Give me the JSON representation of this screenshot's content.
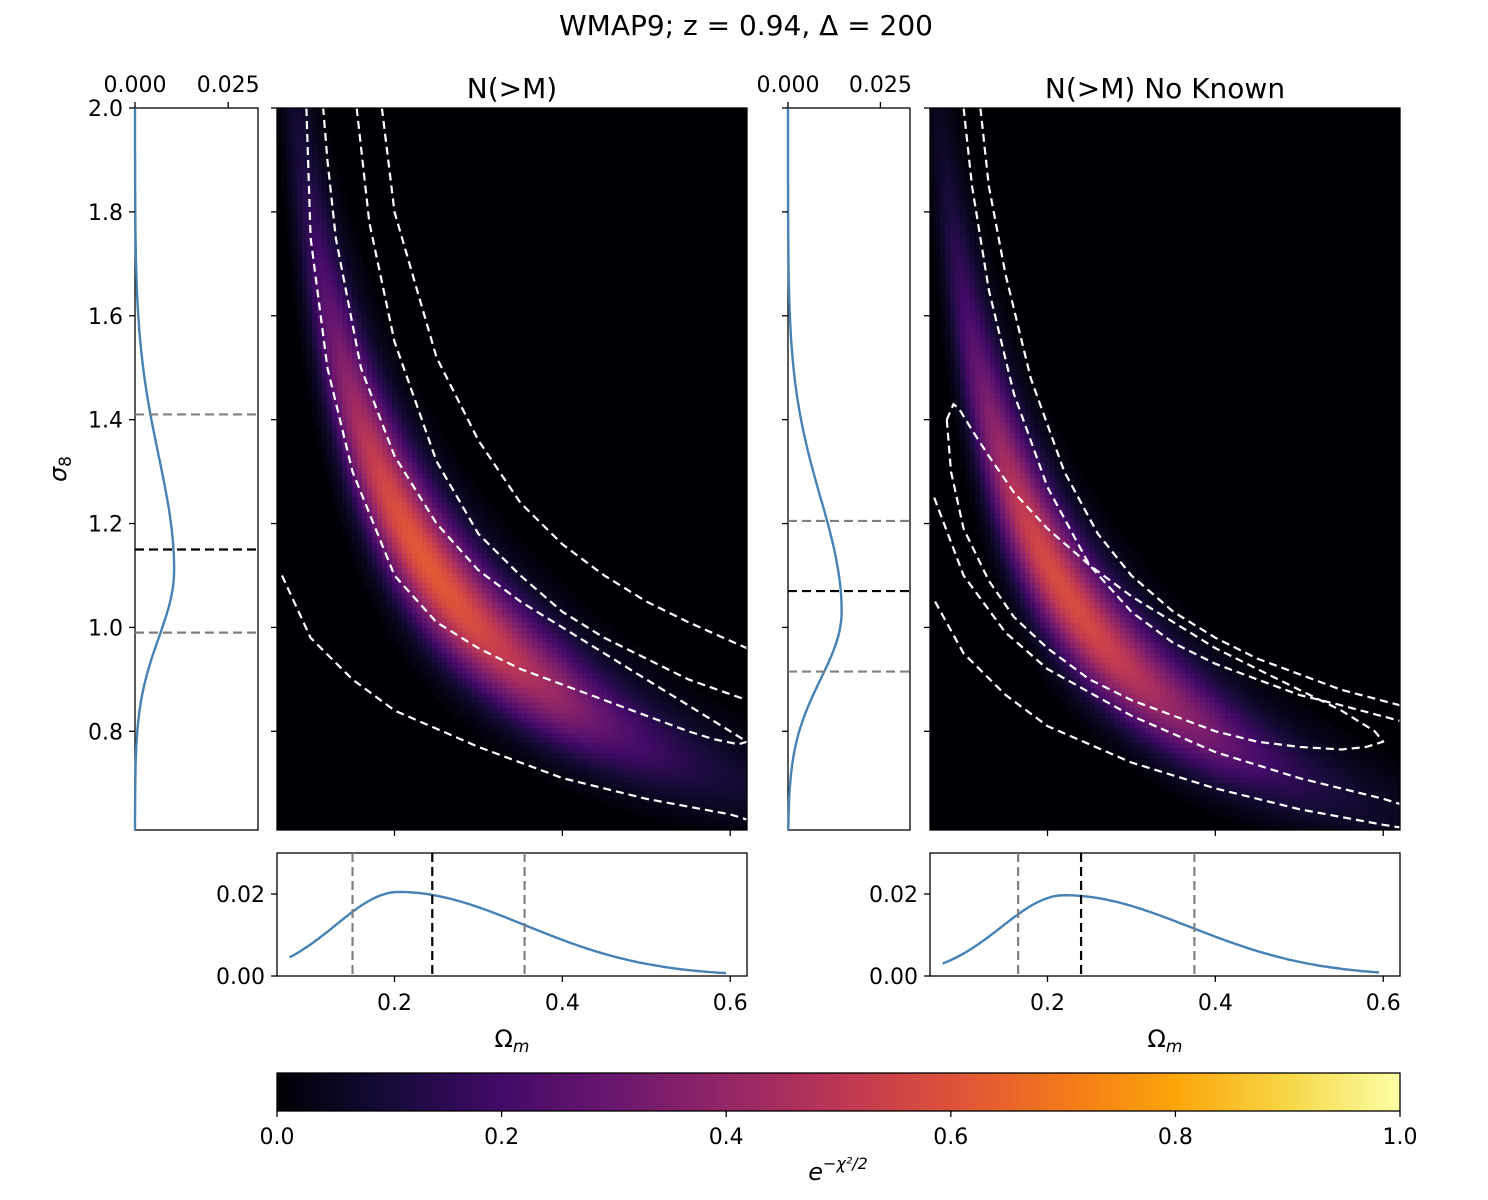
{
  "figure": {
    "suptitle": "WMAP9; z = 0.94, Δ = 200",
    "sigma8_label": "σ",
    "sigma8_sub": "8",
    "omega_label": "Ω",
    "omega_sub": "m",
    "colorbar_label": "e",
    "colorbar_sup": "−χ²/2"
  },
  "colors": {
    "curve": "#4682b4",
    "contour": "#ffffff",
    "best_fit": "#000000",
    "bound": "#808080"
  },
  "chart_data": [
    {
      "id": "left",
      "type": "heatmap",
      "title": "N(>M)",
      "xlim": [
        0.06,
        0.62
      ],
      "ylim": [
        0.61,
        2.0
      ],
      "x_ticks": [
        0.2,
        0.4,
        0.6
      ],
      "y_ticks": [
        0.8,
        1.0,
        1.2,
        1.4,
        1.6,
        1.8,
        2.0
      ],
      "colorscale": "inferno",
      "peak": {
        "omega_m": 0.24,
        "sigma8": 1.12,
        "value": 0.62
      },
      "contours": [
        {
          "omega_m": [
            0.066,
            0.1,
            0.15,
            0.2,
            0.3,
            0.4,
            0.5,
            0.6,
            0.62
          ],
          "sigma8": [
            1.1,
            0.98,
            0.9,
            0.84,
            0.77,
            0.71,
            0.67,
            0.64,
            0.63
          ]
        },
        {
          "omega_m": [
            0.095,
            0.1,
            0.12,
            0.15,
            0.2,
            0.25,
            0.3,
            0.35,
            0.4,
            0.45,
            0.5,
            0.55,
            0.58,
            0.61,
            0.62,
            0.6,
            0.55,
            0.5,
            0.45,
            0.4,
            0.35,
            0.3,
            0.25,
            0.2,
            0.16,
            0.13,
            0.12,
            0.115
          ],
          "sigma8": [
            2.0,
            1.75,
            1.5,
            1.3,
            1.1,
            1.01,
            0.96,
            0.92,
            0.89,
            0.86,
            0.83,
            0.8,
            0.785,
            0.775,
            0.78,
            0.8,
            0.85,
            0.9,
            0.95,
            1.0,
            1.05,
            1.11,
            1.2,
            1.33,
            1.5,
            1.75,
            1.9,
            2.0
          ]
        },
        {
          "omega_m": [
            0.155,
            0.17,
            0.2,
            0.25,
            0.3,
            0.35,
            0.4,
            0.45,
            0.5,
            0.55,
            0.62
          ],
          "sigma8": [
            2.0,
            1.78,
            1.55,
            1.32,
            1.18,
            1.1,
            1.03,
            0.98,
            0.94,
            0.9,
            0.86
          ]
        },
        {
          "omega_m": [
            0.185,
            0.2,
            0.25,
            0.3,
            0.35,
            0.4,
            0.45,
            0.5,
            0.55,
            0.62
          ],
          "sigma8": [
            2.0,
            1.8,
            1.52,
            1.36,
            1.24,
            1.16,
            1.1,
            1.05,
            1.01,
            0.96
          ]
        }
      ],
      "sigma8_marginal": {
        "xlim": [
          0.0,
          0.033
        ],
        "x_ticks": [
          0.0,
          0.025
        ],
        "x_tick_labels": [
          "0.000",
          "0.025"
        ],
        "peak_sigma8": 1.11,
        "peak_value": 0.0105,
        "best_fit": 1.15,
        "bounds": [
          0.99,
          1.41
        ]
      },
      "omega_marginal": {
        "ylim": [
          0.0,
          0.03
        ],
        "y_ticks": [
          0.0,
          0.02
        ],
        "y_tick_labels": [
          "0.00",
          "0.02"
        ],
        "x_range": [
          0.075,
          0.595
        ],
        "peak_omega_m": 0.205,
        "peak_value": 0.0205,
        "best_fit": 0.245,
        "bounds": [
          0.15,
          0.355
        ]
      }
    },
    {
      "id": "right",
      "type": "heatmap",
      "title": "N(>M) No Known",
      "xlim": [
        0.06,
        0.62
      ],
      "ylim": [
        0.61,
        2.0
      ],
      "x_ticks": [
        0.2,
        0.4,
        0.6
      ],
      "y_ticks": [
        0.8,
        1.0,
        1.2,
        1.4,
        1.6,
        1.8,
        2.0
      ],
      "colorscale": "inferno",
      "peak": {
        "omega_m": 0.22,
        "sigma8": 1.07,
        "value": 0.58
      },
      "contours": [
        {
          "omega_m": [
            0.066,
            0.1,
            0.15,
            0.2,
            0.3,
            0.4,
            0.5,
            0.6,
            0.62
          ],
          "sigma8": [
            1.05,
            0.95,
            0.87,
            0.81,
            0.74,
            0.69,
            0.65,
            0.62,
            0.615
          ]
        },
        {
          "omega_m": [
            0.065,
            0.1,
            0.15,
            0.2,
            0.3,
            0.4,
            0.5,
            0.6,
            0.62
          ],
          "sigma8": [
            1.25,
            1.1,
            0.99,
            0.92,
            0.83,
            0.76,
            0.71,
            0.67,
            0.66
          ]
        },
        {
          "omega_m": [
            0.08,
            0.085,
            0.1,
            0.13,
            0.16,
            0.2,
            0.25,
            0.3,
            0.35,
            0.4,
            0.45,
            0.5,
            0.55,
            0.58,
            0.6,
            0.59,
            0.55,
            0.5,
            0.45,
            0.4,
            0.35,
            0.3,
            0.25,
            0.2,
            0.16,
            0.13,
            0.11,
            0.095,
            0.088,
            0.08
          ],
          "sigma8": [
            1.4,
            1.3,
            1.19,
            1.09,
            1.02,
            0.96,
            0.9,
            0.86,
            0.83,
            0.8,
            0.78,
            0.77,
            0.765,
            0.77,
            0.78,
            0.8,
            0.84,
            0.88,
            0.92,
            0.96,
            1.01,
            1.06,
            1.12,
            1.19,
            1.26,
            1.33,
            1.38,
            1.42,
            1.43,
            1.4
          ]
        },
        {
          "omega_m": [
            0.1,
            0.11,
            0.13,
            0.16,
            0.2,
            0.25,
            0.3,
            0.35,
            0.4,
            0.45,
            0.5,
            0.55,
            0.62
          ],
          "sigma8": [
            2.0,
            1.85,
            1.65,
            1.45,
            1.27,
            1.12,
            1.03,
            0.97,
            0.93,
            0.9,
            0.87,
            0.85,
            0.82
          ]
        },
        {
          "omega_m": [
            0.12,
            0.13,
            0.15,
            0.18,
            0.22,
            0.26,
            0.3,
            0.35,
            0.4,
            0.45,
            0.5,
            0.55,
            0.62
          ],
          "sigma8": [
            2.0,
            1.85,
            1.68,
            1.48,
            1.3,
            1.18,
            1.1,
            1.03,
            0.98,
            0.94,
            0.91,
            0.88,
            0.85
          ]
        }
      ],
      "sigma8_marginal": {
        "xlim": [
          0.0,
          0.033
        ],
        "x_ticks": [
          0.0,
          0.025
        ],
        "x_tick_labels": [
          "0.000",
          "0.025"
        ],
        "peak_sigma8": 1.03,
        "peak_value": 0.0145,
        "best_fit": 1.07,
        "bounds": [
          0.915,
          1.205
        ]
      },
      "omega_marginal": {
        "ylim": [
          0.0,
          0.03
        ],
        "y_ticks": [
          0.0,
          0.02
        ],
        "y_tick_labels": [
          "0.00",
          "0.02"
        ],
        "x_range": [
          0.075,
          0.595
        ],
        "peak_omega_m": 0.22,
        "peak_value": 0.0197,
        "best_fit": 0.24,
        "bounds": [
          0.165,
          0.375
        ]
      }
    }
  ],
  "colorbar": {
    "range": [
      0.0,
      1.0
    ],
    "ticks": [
      0.0,
      0.2,
      0.4,
      0.6,
      0.8,
      1.0
    ],
    "tick_labels": [
      "0.0",
      "0.2",
      "0.4",
      "0.6",
      "0.8",
      "1.0"
    ],
    "colorscale": "inferno"
  },
  "y_tick_labels": [
    "0.8",
    "1.0",
    "1.2",
    "1.4",
    "1.6",
    "1.8",
    "2.0"
  ],
  "x_tick_labels": [
    "0.2",
    "0.4",
    "0.6"
  ]
}
